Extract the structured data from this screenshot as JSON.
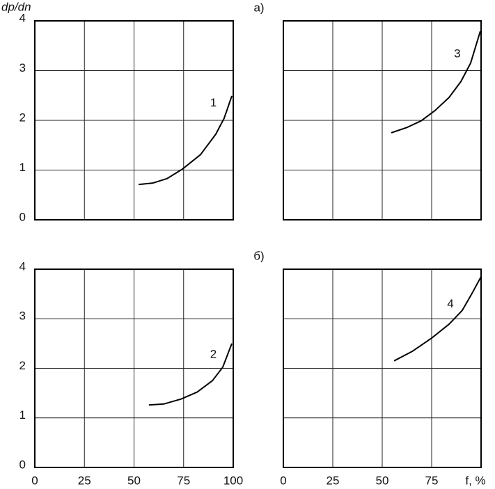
{
  "chart_data": [
    {
      "type": "line",
      "panel_label": "а)",
      "ylabel": "dp/dn",
      "xlim": [
        0,
        100
      ],
      "ylim": [
        0,
        4
      ],
      "xticks": [
        0,
        25,
        50,
        75,
        100
      ],
      "yticks": [
        0,
        1,
        2,
        3,
        4
      ],
      "xtick_labels": false,
      "ytick_labels": true,
      "grid": true,
      "series": [
        {
          "name": "1",
          "color": "#000000",
          "x": [
            52.3,
            59.6,
            66.7,
            74.4,
            83.5,
            91.2,
            95.4,
            99.3
          ],
          "values": [
            0.71,
            0.74,
            0.83,
            1.02,
            1.31,
            1.72,
            2.04,
            2.49
          ]
        }
      ],
      "annotations": [
        {
          "text": "1",
          "x": 90,
          "y": 2.34
        }
      ]
    },
    {
      "type": "line",
      "xlim": [
        0,
        100
      ],
      "ylim": [
        0,
        4
      ],
      "xticks": [
        0,
        25,
        50,
        75,
        100
      ],
      "yticks": [
        0,
        1,
        2,
        3,
        4
      ],
      "xtick_labels": false,
      "ytick_labels": false,
      "grid": true,
      "series": [
        {
          "name": "3",
          "color": "#000000",
          "x": [
            54.6,
            62.7,
            69.7,
            76.8,
            83.8,
            89.8,
            94.7,
            99.6
          ],
          "values": [
            1.75,
            1.86,
            1.99,
            2.2,
            2.46,
            2.78,
            3.15,
            3.79
          ]
        }
      ],
      "annotations": [
        {
          "text": "3",
          "x": 88,
          "y": 3.33
        }
      ]
    },
    {
      "type": "line",
      "panel_label": "б)",
      "xlim": [
        0,
        100
      ],
      "ylim": [
        0,
        4
      ],
      "xticks": [
        0,
        25,
        50,
        75,
        100
      ],
      "yticks": [
        0,
        1,
        2,
        3,
        4
      ],
      "xtick_labels": true,
      "ytick_labels": true,
      "grid": true,
      "series": [
        {
          "name": "2",
          "color": "#000000",
          "x": [
            57.5,
            65,
            73.7,
            81.8,
            89.5,
            94.7,
            99.3
          ],
          "values": [
            1.26,
            1.28,
            1.38,
            1.52,
            1.75,
            2.02,
            2.5
          ]
        }
      ],
      "annotations": [
        {
          "text": "2",
          "x": 90,
          "y": 2.27
        }
      ]
    },
    {
      "type": "line",
      "xlim": [
        0,
        100
      ],
      "ylim": [
        0,
        4
      ],
      "xticks": [
        0,
        25,
        50,
        75,
        {
          "value": 100,
          "label": "f, %"
        }
      ],
      "yticks": [
        0,
        1,
        2,
        3,
        4
      ],
      "xtick_labels": true,
      "ytick_labels": false,
      "grid": true,
      "series": [
        {
          "name": "4",
          "color": "#000000",
          "x": [
            56,
            65.1,
            75,
            83.8,
            90.5,
            95.4,
            100
          ],
          "values": [
            2.15,
            2.34,
            2.61,
            2.89,
            3.17,
            3.51,
            3.85
          ]
        }
      ],
      "annotations": [
        {
          "text": "4",
          "x": 84.5,
          "y": 3.29
        }
      ]
    }
  ]
}
